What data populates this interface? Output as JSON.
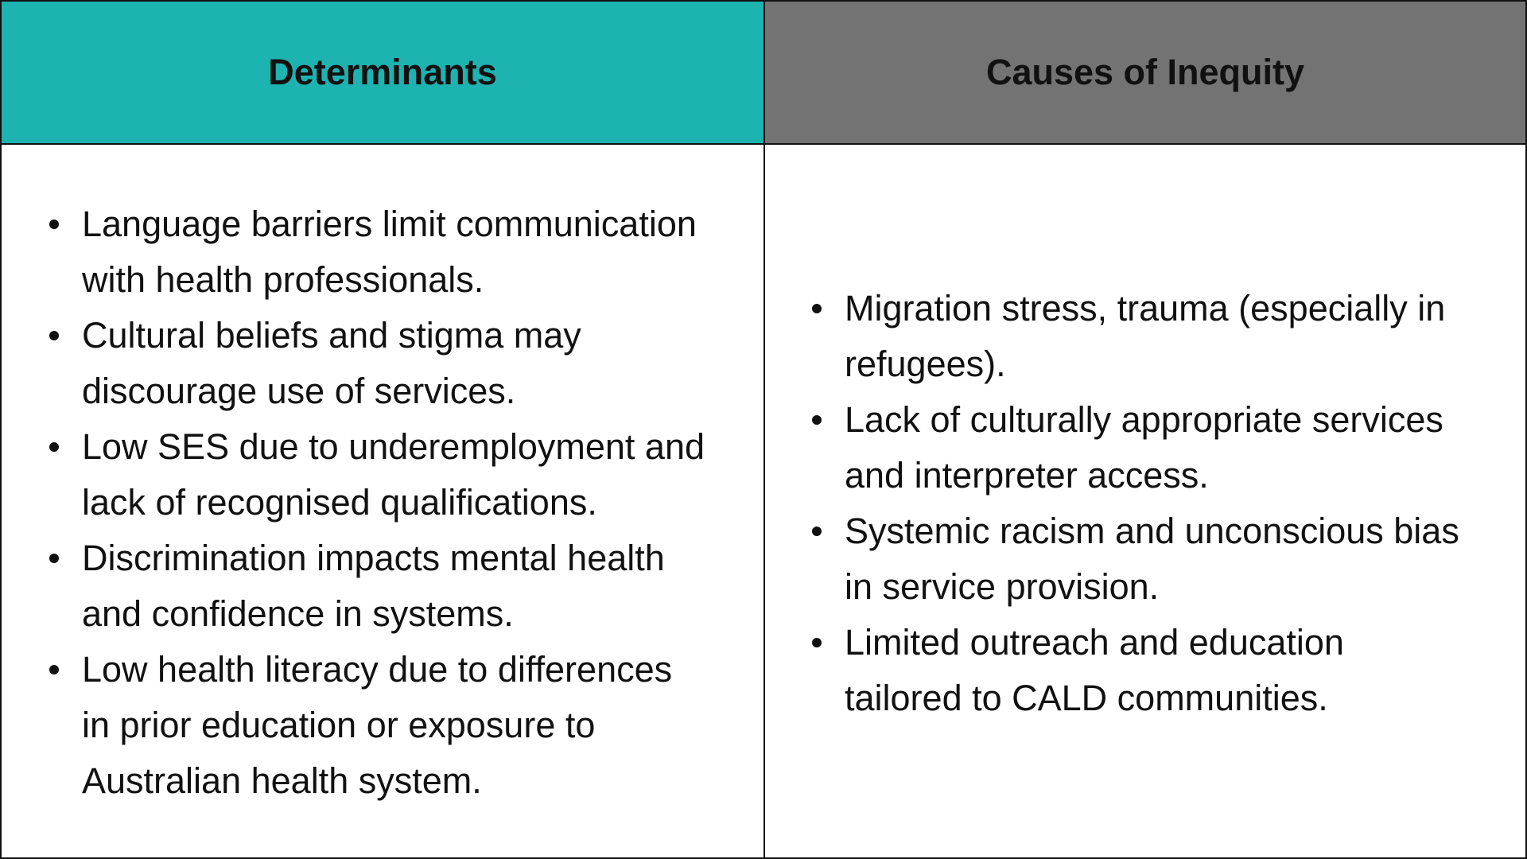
{
  "headers": {
    "determinants": "Determinants",
    "causes": "Causes of Inequity"
  },
  "colors": {
    "determinants_header": "#1cb3b0",
    "causes_header": "#737373"
  },
  "determinants": [
    [
      "Language barriers limit communication",
      "with health professionals."
    ],
    [
      "Cultural beliefs and stigma may",
      "discourage use of services."
    ],
    [
      "Low SES due to underemployment and",
      "lack of recognised qualifications."
    ],
    [
      "Discrimination impacts mental health",
      "and confidence in systems."
    ],
    [
      "Low health literacy due to differences",
      "in prior education or exposure to",
      "Australian health system."
    ]
  ],
  "causes": [
    [
      "Migration stress, trauma (especially in",
      "refugees)."
    ],
    [
      "Lack of culturally appropriate services",
      "and interpreter access."
    ],
    [
      "Systemic racism and unconscious bias",
      "in service provision."
    ],
    [
      "Limited outreach and education",
      "tailored to CALD communities."
    ]
  ]
}
